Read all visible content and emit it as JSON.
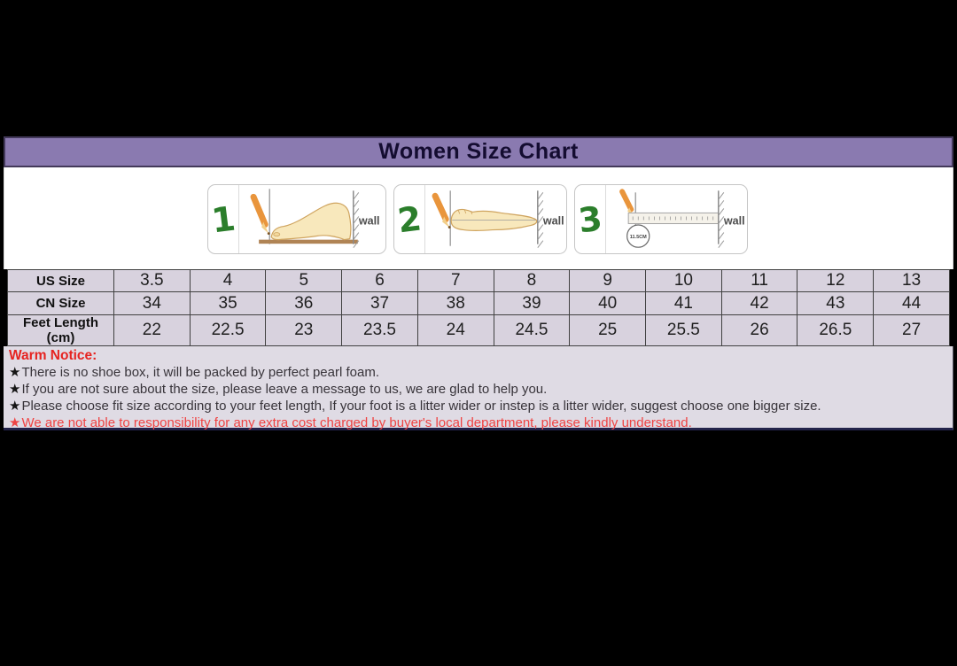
{
  "page": {
    "title": "Women Size Chart"
  },
  "colors": {
    "header_bg": "#8a7ab0",
    "table_cell_bg": "#d8d2de",
    "notice_bg": "#dfdbe4",
    "warning_red": "#e62320",
    "light_red": "#ef4343",
    "step_number_green": "#2b7e2b",
    "pencil_orange": "#e9953c",
    "letterbox_black": "#000000"
  },
  "measure_steps": [
    {
      "number": "1",
      "wall_label": "wall"
    },
    {
      "number": "2",
      "wall_label": "wall"
    },
    {
      "number": "3",
      "wall_label": "wall",
      "ruler_note": "11.5CM"
    }
  ],
  "chart_data": {
    "type": "table",
    "title": "Women Size Chart",
    "rows": [
      {
        "label": "US Size",
        "values": [
          "3.5",
          "4",
          "5",
          "6",
          "7",
          "8",
          "9",
          "10",
          "11",
          "12",
          "13"
        ]
      },
      {
        "label": "CN Size",
        "values": [
          "34",
          "35",
          "36",
          "37",
          "38",
          "39",
          "40",
          "41",
          "42",
          "43",
          "44"
        ]
      },
      {
        "label": "Feet Length (cm)",
        "values": [
          "22",
          "22.5",
          "23",
          "23.5",
          "24",
          "24.5",
          "25",
          "25.5",
          "26",
          "26.5",
          "27"
        ]
      }
    ]
  },
  "notice": {
    "heading": "Warm Notice:",
    "items": [
      {
        "star": "★",
        "emphasis": "normal",
        "text": "There is no shoe box, it will be packed by perfect pearl foam."
      },
      {
        "star": "★",
        "emphasis": "normal",
        "text": "If you are not sure about the size, please leave a message to us, we are glad to help you."
      },
      {
        "star": "★",
        "emphasis": "normal",
        "text": "Please choose fit size according to your feet length, If your foot is a litter wider or instep is a litter wider, suggest choose one bigger size."
      },
      {
        "star": "★",
        "emphasis": "red",
        "text": "We are not able to responsibility for any extra cost charged by buyer's local department, please kindly understand."
      }
    ]
  }
}
